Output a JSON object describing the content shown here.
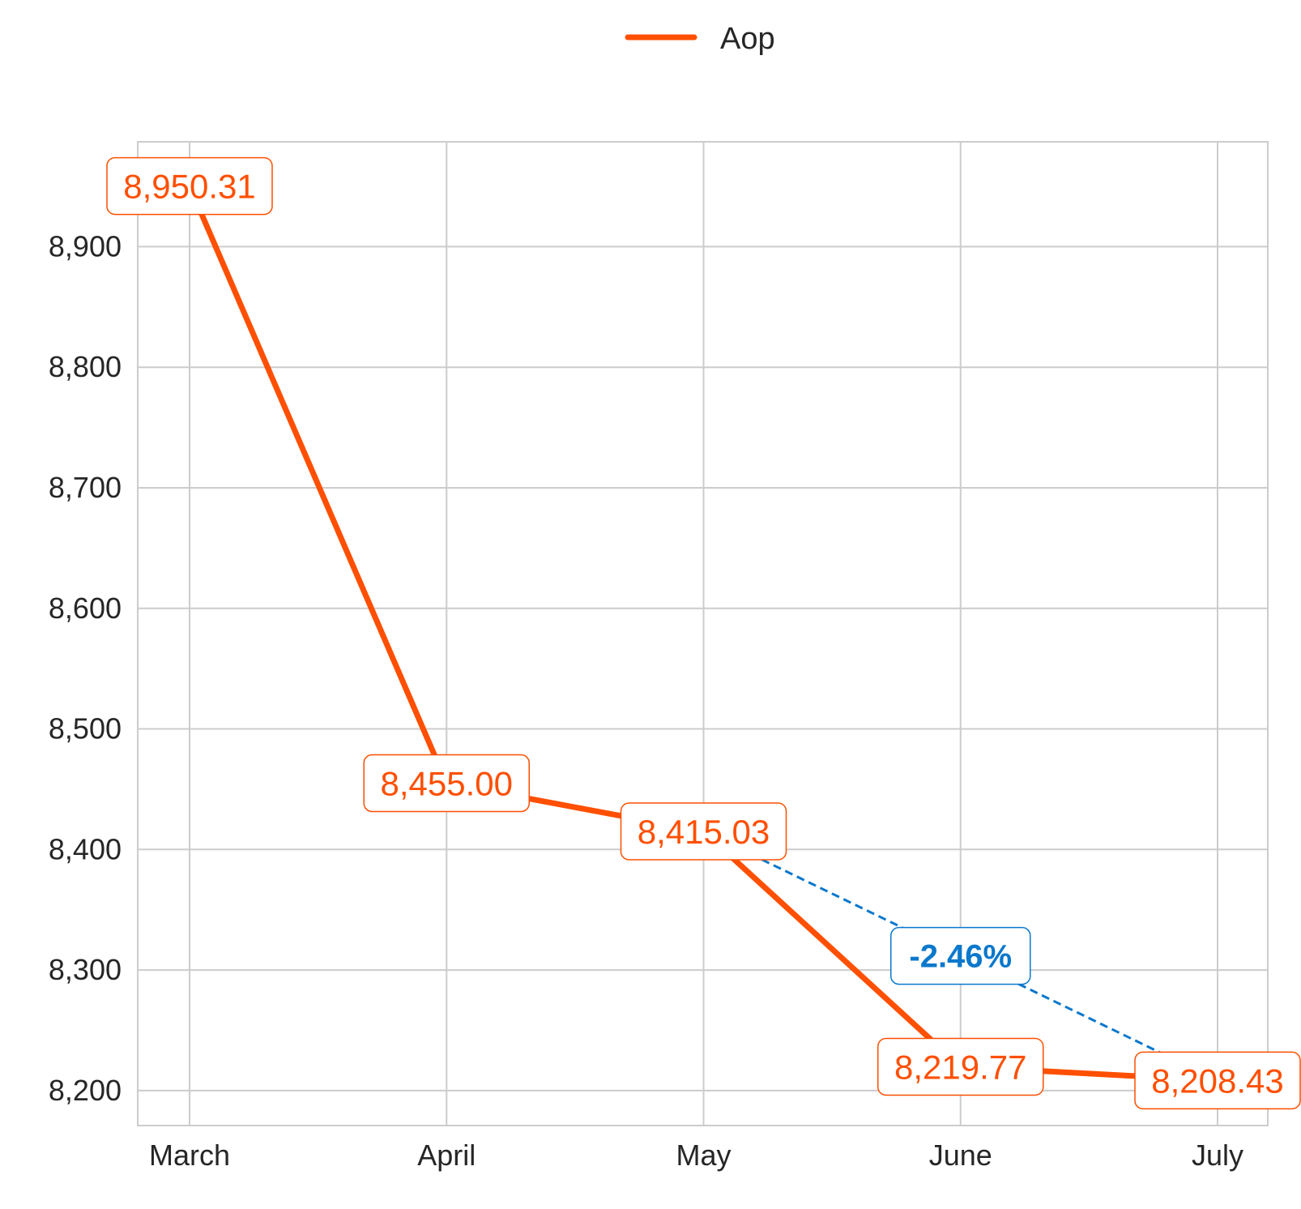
{
  "chart_data": {
    "type": "line",
    "categories": [
      "March",
      "April",
      "May",
      "June",
      "July"
    ],
    "series": [
      {
        "name": "Aop",
        "color": "#FF4F00",
        "values": [
          8950.31,
          8455.0,
          8415.03,
          8219.77,
          8208.43
        ],
        "labels": [
          "8,950.31",
          "8,455.00",
          "8,415.03",
          "8,219.77",
          "8,208.43"
        ]
      }
    ],
    "yticks": [
      8200,
      8300,
      8400,
      8500,
      8600,
      8700,
      8800,
      8900
    ],
    "ytick_labels": [
      "8,200",
      "8,300",
      "8,400",
      "8,500",
      "8,600",
      "8,700",
      "8,800",
      "8,900"
    ],
    "ylim": [
      8171,
      8987
    ],
    "grid": true,
    "legend_position": "top-center",
    "annotation": {
      "text": "-2.46%",
      "from_category": "May",
      "to_category": "July",
      "color": "#0A78CC",
      "style": "dashed"
    },
    "title": "",
    "xlabel": "",
    "ylabel": ""
  }
}
